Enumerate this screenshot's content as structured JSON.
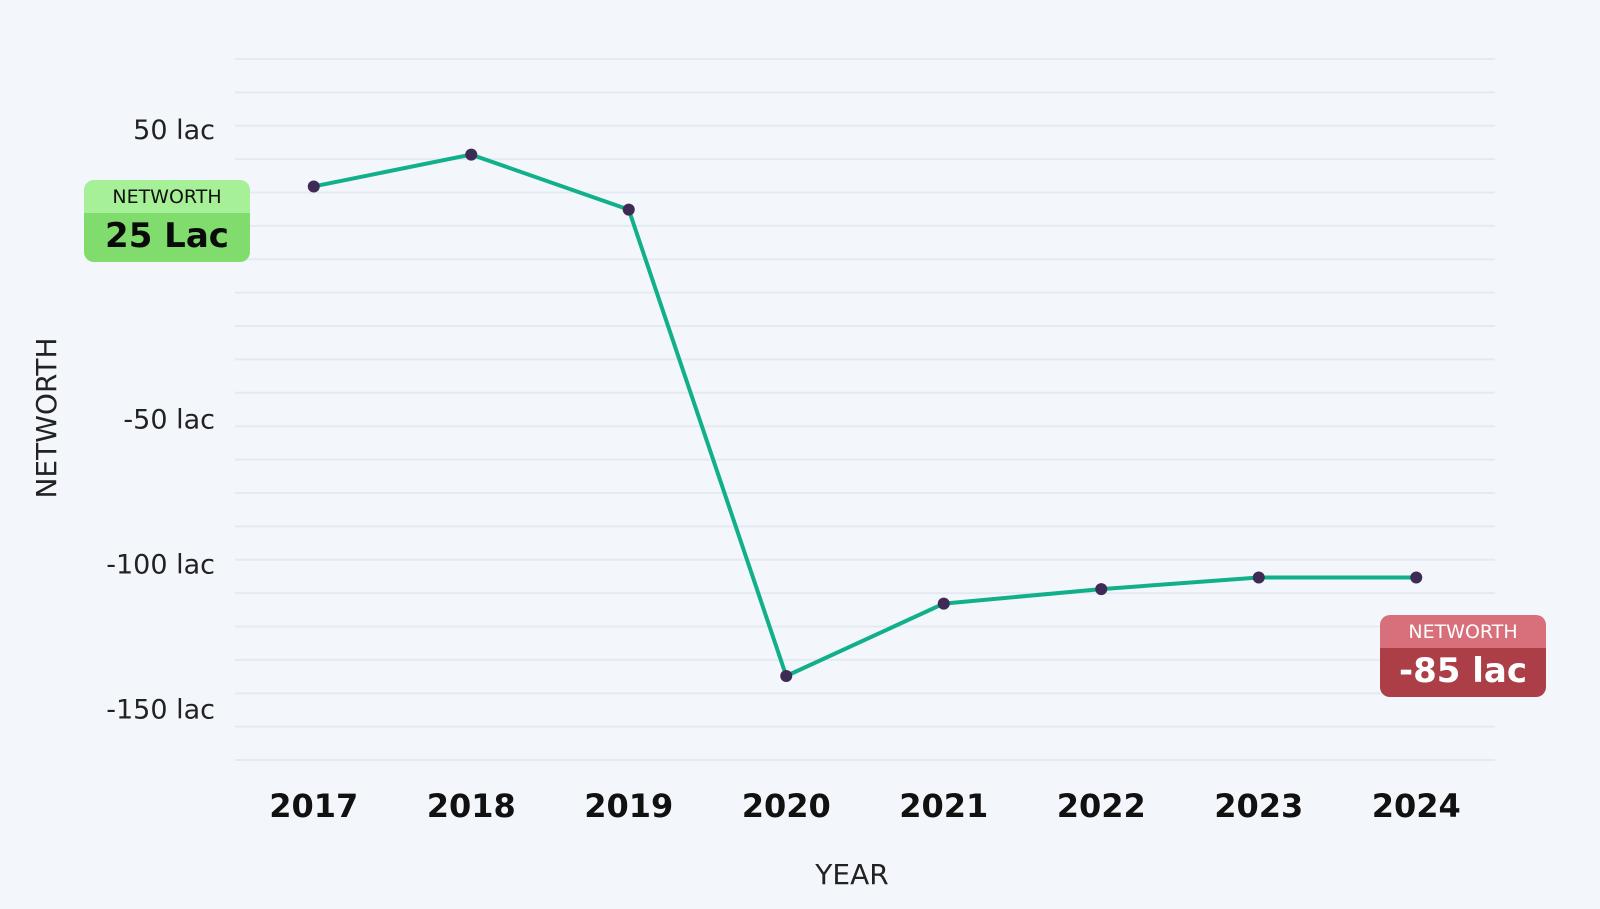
{
  "chart_data": {
    "type": "line",
    "x_label": "YEAR",
    "y_label": "NETWORTH",
    "categories": [
      "2017",
      "2018",
      "2019",
      "2020",
      "2021",
      "2022",
      "2023",
      "2024"
    ],
    "series": [
      {
        "name": "NETWORTH",
        "color": "#12b08a",
        "values": [
          31,
          42,
          23,
          -138,
          -113,
          -108,
          -104,
          -104
        ]
      }
    ],
    "ylim": [
      -167,
      75
    ],
    "yticks": [
      {
        "value": 50,
        "label": "50 lac"
      },
      {
        "value": -50,
        "label": "-50 lac"
      },
      {
        "value": -100,
        "label": "-100 lac"
      },
      {
        "value": -150,
        "label": "-150 lac"
      }
    ],
    "annotations": [
      {
        "label": "NETWORTH",
        "text": "25 Lac"
      },
      {
        "label": "NETWORTH",
        "text": "-85 lac"
      }
    ]
  }
}
